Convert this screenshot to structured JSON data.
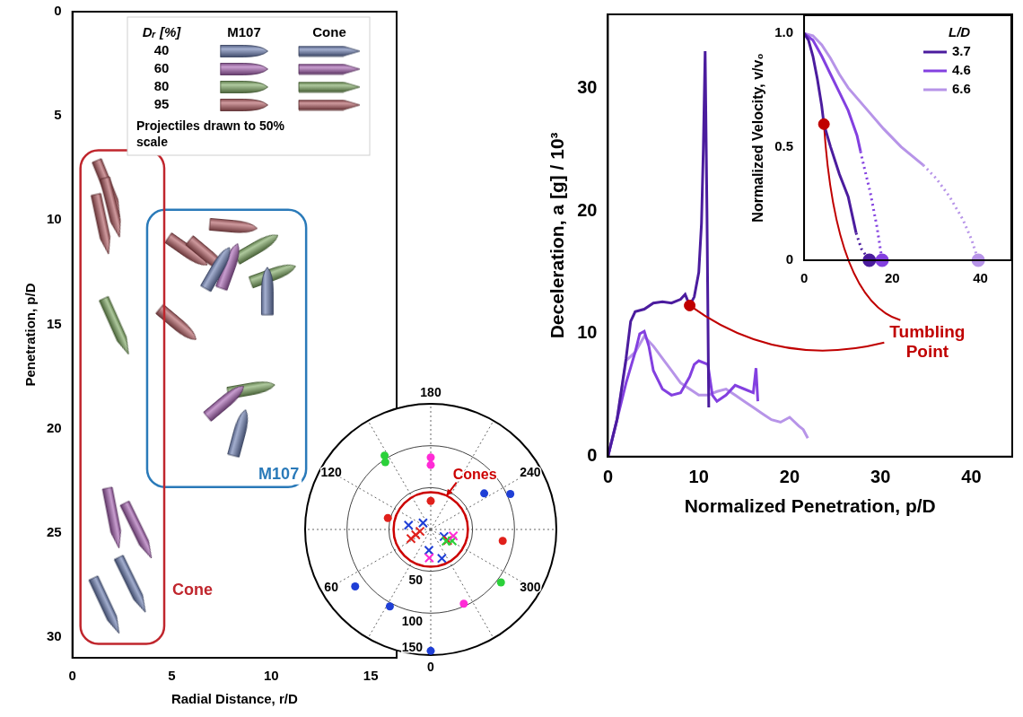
{
  "chart_data": [
    {
      "type": "scatter",
      "x_label": "Radial Distance, r/D",
      "y_label": "Penetration, p/D",
      "xlim": [
        0,
        16.3
      ],
      "ylim": [
        0,
        31
      ],
      "xticks": [
        0,
        5,
        10,
        15
      ],
      "yticks": [
        0,
        5,
        10,
        15,
        20,
        25,
        30
      ],
      "legend": "top right",
      "legend_title": "Dᵣ [%]",
      "annotations": [
        {
          "text": "Projectiles drawn to 50% scale"
        }
      ],
      "groups": [
        {
          "name": "M107",
          "color": "#2a7ab9",
          "marker": "ogive",
          "series": [
            {
              "name": "40",
              "color": "#5a6ea8",
              "x": [
                7.3,
                9.8,
                8.4
              ],
              "values": [
                12.3,
                13.4,
                20.2
              ],
              "tilt_deg": [
                -60,
                -90,
                -75
              ]
            },
            {
              "name": "60",
              "color": "#9b4fa8",
              "x": [
                7.9,
                7.7
              ],
              "values": [
                12.2,
                18.7
              ],
              "tilt_deg": [
                -70,
                -40
              ]
            },
            {
              "name": "80",
              "color": "#6e9e4f",
              "x": [
                9.3,
                10.1,
                9.0
              ],
              "values": [
                11.3,
                12.6,
                18.1
              ],
              "tilt_deg": [
                -30,
                -20,
                -10
              ]
            },
            {
              "name": "95",
              "color": "#a8494f",
              "x": [
                5.8,
                8.1,
                6.8,
                5.3
              ],
              "values": [
                11.5,
                10.3,
                11.7,
                15.0
              ],
              "tilt_deg": [
                35,
                5,
                40,
                40
              ]
            }
          ]
        },
        {
          "name": "Cone",
          "color": "#c0262d",
          "marker": "cone",
          "series": [
            {
              "name": "40",
              "color": "#5a6ea8",
              "x": [
                3.0,
                1.7
              ],
              "values": [
                27.5,
                28.5
              ],
              "tilt_deg": [
                64,
                65
              ]
            },
            {
              "name": "60",
              "color": "#9b4fa8",
              "x": [
                2.05,
                3.3
              ],
              "values": [
                24.3,
                24.9
              ],
              "tilt_deg": [
                79,
                64
              ]
            },
            {
              "name": "80",
              "color": "#6e9e4f",
              "x": [
                2.2
              ],
              "values": [
                15.1
              ],
              "tilt_deg": [
                66
              ]
            },
            {
              "name": "95",
              "color": "#a8494f",
              "x": [
                1.8,
                1.5,
                2.0
              ],
              "values": [
                8.5,
                10.2,
                9.4
              ],
              "tilt_deg": [
                68,
                78,
                76
              ]
            }
          ]
        }
      ]
    },
    {
      "type": "polar",
      "rlim": [
        0,
        150
      ],
      "rticks": [
        50,
        100,
        150
      ],
      "angle_ticks": [
        0,
        60,
        120,
        180,
        240,
        300
      ],
      "annotations": [
        {
          "text": "Cones",
          "color": "#cc0000",
          "target": "Cone"
        }
      ],
      "series": [
        {
          "name": "M107",
          "marker": "circle",
          "angle": [
            148,
            146,
            180,
            180,
            180,
            105,
            236,
            246,
            279,
            307,
            336,
            0,
            28,
            53
          ],
          "r": [
            104,
            97,
            86,
            77,
            34,
            53,
            77,
            104,
            87,
            105,
            97,
            145,
            104,
            113
          ],
          "colors": [
            "#2bd13a",
            "#2bd13a",
            "#ff2bd6",
            "#ff2bd6",
            "#e0201b",
            "#e0201b",
            "#1f3fd6",
            "#1f3fd6",
            "#e0201b",
            "#2bd13a",
            "#ff2bd6",
            "#1f3fd6",
            "#1f3fd6",
            "#1f3fd6"
          ]
        },
        {
          "name": "Cone",
          "marker": "cross",
          "angle": [
            101,
            130,
            298,
            339,
            5,
            65,
            70,
            80,
            303,
            307,
            298,
            3,
            286
          ],
          "r": [
            27,
            12,
            18,
            37,
            25,
            26,
            19,
            13,
            24,
            23,
            29,
            34,
            28
          ],
          "colors": [
            "#1f3fd6",
            "#1f3fd6",
            "#1f3fd6",
            "#1f3fd6",
            "#1f3fd6",
            "#e0201b",
            "#e0201b",
            "#e0201b",
            "#e0201b",
            "#2bd13a",
            "#2bd13a",
            "#ff2bd6",
            "#ff2bd6"
          ]
        }
      ]
    },
    {
      "type": "line",
      "x_label": "Normalized Penetration, p/D",
      "y_label": "Deceleration, a [g] / 10³",
      "xlim": [
        0,
        44.5
      ],
      "ylim": [
        0,
        36
      ],
      "xticks": [
        0,
        10,
        20,
        30,
        40
      ],
      "yticks": [
        0,
        10,
        20,
        30
      ],
      "series": [
        {
          "name": "3.7",
          "color": "#4b1c9e",
          "line_style": "solid",
          "x": [
            0,
            1,
            2,
            2.5,
            3,
            4,
            5,
            6,
            7,
            8,
            8.5,
            9,
            9.5,
            10,
            10.3,
            10.5,
            10.7,
            10.9,
            11.1
          ],
          "values": [
            0,
            3,
            8,
            11,
            11.8,
            12,
            12.5,
            12.6,
            12.5,
            12.8,
            13.2,
            12.3,
            13.0,
            15,
            19,
            25,
            33,
            20,
            4
          ]
        },
        {
          "name": "4.6",
          "color": "#8340e0",
          "line_style": "solid",
          "x": [
            0,
            1,
            2,
            3,
            3.5,
            4,
            4.5,
            5,
            6,
            7,
            8,
            9,
            9.5,
            10,
            11,
            11.5,
            12,
            13,
            14,
            15,
            16,
            16.3,
            16.5
          ],
          "values": [
            0,
            3,
            6,
            8.5,
            10,
            10.2,
            9,
            7,
            5.5,
            5,
            5.2,
            6.5,
            7.5,
            7.8,
            7.5,
            5,
            4.5,
            5,
            5.8,
            5.5,
            5.2,
            7.2,
            4.5
          ]
        },
        {
          "name": "6.6",
          "color": "#b794e8",
          "line_style": "solid",
          "x": [
            0,
            1,
            2,
            3,
            4,
            5,
            6,
            7,
            8,
            9,
            10,
            11,
            12,
            13,
            14,
            15,
            16,
            17,
            18,
            19,
            20,
            21,
            21.5,
            22
          ],
          "values": [
            0,
            3,
            7.8,
            8.5,
            9.8,
            9,
            8,
            7,
            6,
            5.5,
            5,
            5,
            5.3,
            5.5,
            5,
            4.5,
            4,
            3.5,
            3,
            2.8,
            3.2,
            2.5,
            2.2,
            1.5
          ]
        }
      ],
      "annotations": [
        {
          "text": "Tumbling Point",
          "x": 9,
          "y": 12.3,
          "color": "#c00000"
        }
      ]
    },
    {
      "type": "line",
      "y_label": "Normalized Velocity, v/v₀",
      "xlim": [
        0,
        47
      ],
      "ylim": [
        0,
        1.08
      ],
      "xticks": [
        0,
        20,
        40
      ],
      "yticks": [
        0,
        0.5,
        {
          "value": 1,
          "label": "1.0"
        }
      ],
      "legend": "top right",
      "legend_title": "L/D",
      "series": [
        {
          "name": "3.7",
          "color": "#4b1c9e",
          "line_style": "solid",
          "x": [
            0,
            1,
            2,
            3,
            4,
            4.5,
            6,
            8,
            10,
            11.8
          ],
          "values": [
            1,
            0.97,
            0.9,
            0.8,
            0.68,
            0.6,
            0.5,
            0.38,
            0.28,
            0.12
          ],
          "extrapolation": {
            "line_style": "dotted",
            "marker": "circle",
            "x": [
              11.8,
              13,
              14.8
            ],
            "values": [
              0.12,
              0.05,
              0
            ]
          }
        },
        {
          "name": "4.6",
          "color": "#8340e0",
          "line_style": "solid",
          "x": [
            0,
            2,
            4,
            6,
            8,
            10,
            12,
            12.8
          ],
          "values": [
            1,
            0.97,
            0.9,
            0.82,
            0.74,
            0.66,
            0.55,
            0.48
          ],
          "extrapolation": {
            "line_style": "dotted",
            "marker": "circle",
            "x": [
              12.8,
              13.5,
              15,
              16.5,
              17.7
            ],
            "values": [
              0.48,
              0.42,
              0.3,
              0.15,
              0
            ]
          }
        },
        {
          "name": "6.6",
          "color": "#b794e8",
          "line_style": "solid",
          "x": [
            0,
            2,
            4,
            6,
            8,
            10,
            14,
            18,
            22,
            27
          ],
          "values": [
            1,
            0.99,
            0.95,
            0.89,
            0.82,
            0.76,
            0.67,
            0.58,
            0.5,
            0.42
          ],
          "extrapolation": {
            "line_style": "dotted",
            "marker": "circle",
            "x": [
              27,
              30,
              33,
              36,
              38,
              39.5
            ],
            "values": [
              0.42,
              0.36,
              0.28,
              0.18,
              0.09,
              0
            ]
          }
        }
      ],
      "annotations": [
        {
          "x": 4.5,
          "y": 0.6,
          "color": "#c00000",
          "target": "Tumbling Point"
        }
      ]
    }
  ]
}
